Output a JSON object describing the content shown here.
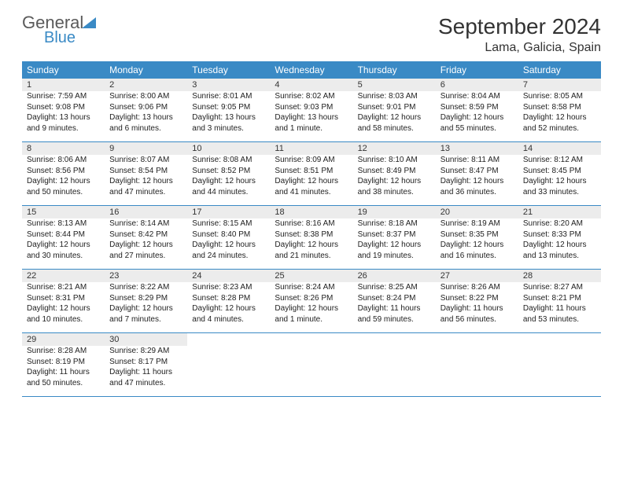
{
  "logo": {
    "word1": "General",
    "word2": "Blue"
  },
  "header": {
    "month_title": "September 2024",
    "location": "Lama, Galicia, Spain"
  },
  "colors": {
    "brand_blue": "#3a8ac5",
    "header_text": "#333333",
    "daynum_bg": "#ececec",
    "body_text": "#222222",
    "background": "#ffffff"
  },
  "fonts": {
    "title_size": 28,
    "location_size": 16,
    "dow_size": 12,
    "daynum_size": 11,
    "cell_size": 10
  },
  "dow": [
    "Sunday",
    "Monday",
    "Tuesday",
    "Wednesday",
    "Thursday",
    "Friday",
    "Saturday"
  ],
  "weeks": [
    [
      {
        "num": "1",
        "sunrise": "Sunrise: 7:59 AM",
        "sunset": "Sunset: 9:08 PM",
        "dl1": "Daylight: 13 hours",
        "dl2": "and 9 minutes."
      },
      {
        "num": "2",
        "sunrise": "Sunrise: 8:00 AM",
        "sunset": "Sunset: 9:06 PM",
        "dl1": "Daylight: 13 hours",
        "dl2": "and 6 minutes."
      },
      {
        "num": "3",
        "sunrise": "Sunrise: 8:01 AM",
        "sunset": "Sunset: 9:05 PM",
        "dl1": "Daylight: 13 hours",
        "dl2": "and 3 minutes."
      },
      {
        "num": "4",
        "sunrise": "Sunrise: 8:02 AM",
        "sunset": "Sunset: 9:03 PM",
        "dl1": "Daylight: 13 hours",
        "dl2": "and 1 minute."
      },
      {
        "num": "5",
        "sunrise": "Sunrise: 8:03 AM",
        "sunset": "Sunset: 9:01 PM",
        "dl1": "Daylight: 12 hours",
        "dl2": "and 58 minutes."
      },
      {
        "num": "6",
        "sunrise": "Sunrise: 8:04 AM",
        "sunset": "Sunset: 8:59 PM",
        "dl1": "Daylight: 12 hours",
        "dl2": "and 55 minutes."
      },
      {
        "num": "7",
        "sunrise": "Sunrise: 8:05 AM",
        "sunset": "Sunset: 8:58 PM",
        "dl1": "Daylight: 12 hours",
        "dl2": "and 52 minutes."
      }
    ],
    [
      {
        "num": "8",
        "sunrise": "Sunrise: 8:06 AM",
        "sunset": "Sunset: 8:56 PM",
        "dl1": "Daylight: 12 hours",
        "dl2": "and 50 minutes."
      },
      {
        "num": "9",
        "sunrise": "Sunrise: 8:07 AM",
        "sunset": "Sunset: 8:54 PM",
        "dl1": "Daylight: 12 hours",
        "dl2": "and 47 minutes."
      },
      {
        "num": "10",
        "sunrise": "Sunrise: 8:08 AM",
        "sunset": "Sunset: 8:52 PM",
        "dl1": "Daylight: 12 hours",
        "dl2": "and 44 minutes."
      },
      {
        "num": "11",
        "sunrise": "Sunrise: 8:09 AM",
        "sunset": "Sunset: 8:51 PM",
        "dl1": "Daylight: 12 hours",
        "dl2": "and 41 minutes."
      },
      {
        "num": "12",
        "sunrise": "Sunrise: 8:10 AM",
        "sunset": "Sunset: 8:49 PM",
        "dl1": "Daylight: 12 hours",
        "dl2": "and 38 minutes."
      },
      {
        "num": "13",
        "sunrise": "Sunrise: 8:11 AM",
        "sunset": "Sunset: 8:47 PM",
        "dl1": "Daylight: 12 hours",
        "dl2": "and 36 minutes."
      },
      {
        "num": "14",
        "sunrise": "Sunrise: 8:12 AM",
        "sunset": "Sunset: 8:45 PM",
        "dl1": "Daylight: 12 hours",
        "dl2": "and 33 minutes."
      }
    ],
    [
      {
        "num": "15",
        "sunrise": "Sunrise: 8:13 AM",
        "sunset": "Sunset: 8:44 PM",
        "dl1": "Daylight: 12 hours",
        "dl2": "and 30 minutes."
      },
      {
        "num": "16",
        "sunrise": "Sunrise: 8:14 AM",
        "sunset": "Sunset: 8:42 PM",
        "dl1": "Daylight: 12 hours",
        "dl2": "and 27 minutes."
      },
      {
        "num": "17",
        "sunrise": "Sunrise: 8:15 AM",
        "sunset": "Sunset: 8:40 PM",
        "dl1": "Daylight: 12 hours",
        "dl2": "and 24 minutes."
      },
      {
        "num": "18",
        "sunrise": "Sunrise: 8:16 AM",
        "sunset": "Sunset: 8:38 PM",
        "dl1": "Daylight: 12 hours",
        "dl2": "and 21 minutes."
      },
      {
        "num": "19",
        "sunrise": "Sunrise: 8:18 AM",
        "sunset": "Sunset: 8:37 PM",
        "dl1": "Daylight: 12 hours",
        "dl2": "and 19 minutes."
      },
      {
        "num": "20",
        "sunrise": "Sunrise: 8:19 AM",
        "sunset": "Sunset: 8:35 PM",
        "dl1": "Daylight: 12 hours",
        "dl2": "and 16 minutes."
      },
      {
        "num": "21",
        "sunrise": "Sunrise: 8:20 AM",
        "sunset": "Sunset: 8:33 PM",
        "dl1": "Daylight: 12 hours",
        "dl2": "and 13 minutes."
      }
    ],
    [
      {
        "num": "22",
        "sunrise": "Sunrise: 8:21 AM",
        "sunset": "Sunset: 8:31 PM",
        "dl1": "Daylight: 12 hours",
        "dl2": "and 10 minutes."
      },
      {
        "num": "23",
        "sunrise": "Sunrise: 8:22 AM",
        "sunset": "Sunset: 8:29 PM",
        "dl1": "Daylight: 12 hours",
        "dl2": "and 7 minutes."
      },
      {
        "num": "24",
        "sunrise": "Sunrise: 8:23 AM",
        "sunset": "Sunset: 8:28 PM",
        "dl1": "Daylight: 12 hours",
        "dl2": "and 4 minutes."
      },
      {
        "num": "25",
        "sunrise": "Sunrise: 8:24 AM",
        "sunset": "Sunset: 8:26 PM",
        "dl1": "Daylight: 12 hours",
        "dl2": "and 1 minute."
      },
      {
        "num": "26",
        "sunrise": "Sunrise: 8:25 AM",
        "sunset": "Sunset: 8:24 PM",
        "dl1": "Daylight: 11 hours",
        "dl2": "and 59 minutes."
      },
      {
        "num": "27",
        "sunrise": "Sunrise: 8:26 AM",
        "sunset": "Sunset: 8:22 PM",
        "dl1": "Daylight: 11 hours",
        "dl2": "and 56 minutes."
      },
      {
        "num": "28",
        "sunrise": "Sunrise: 8:27 AM",
        "sunset": "Sunset: 8:21 PM",
        "dl1": "Daylight: 11 hours",
        "dl2": "and 53 minutes."
      }
    ],
    [
      {
        "num": "29",
        "sunrise": "Sunrise: 8:28 AM",
        "sunset": "Sunset: 8:19 PM",
        "dl1": "Daylight: 11 hours",
        "dl2": "and 50 minutes."
      },
      {
        "num": "30",
        "sunrise": "Sunrise: 8:29 AM",
        "sunset": "Sunset: 8:17 PM",
        "dl1": "Daylight: 11 hours",
        "dl2": "and 47 minutes."
      },
      null,
      null,
      null,
      null,
      null
    ]
  ]
}
